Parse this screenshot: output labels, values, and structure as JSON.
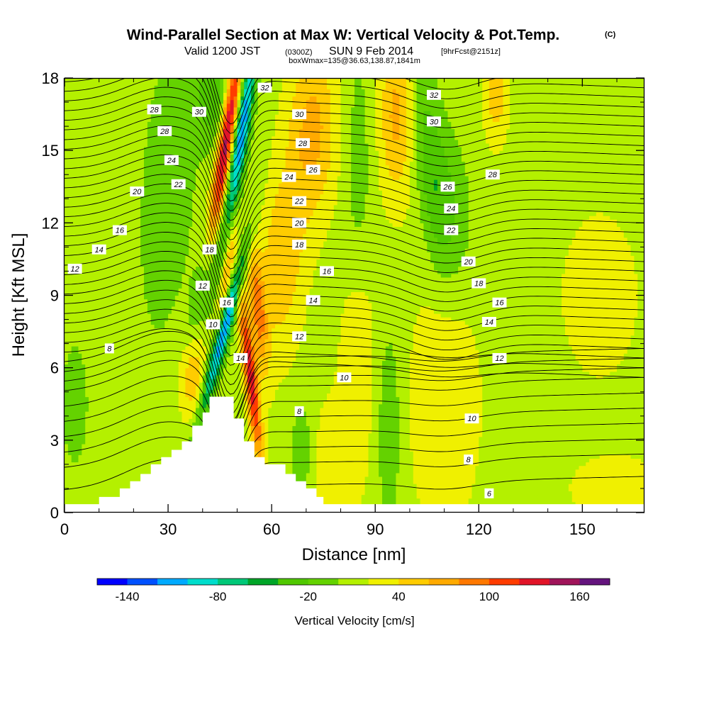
{
  "header": {
    "title": "Wind-Parallel Section at Max W: Vertical Velocity & Pot.Temp.",
    "title_mark": "(C)",
    "valid_a": "Valid 1200 JST",
    "valid_b": "(0300Z)",
    "valid_c": "SUN 9 Feb 2014",
    "valid_d": "[9hrFcst@2151z]",
    "box": "boxWmax=135@36.63,138.87,1841m"
  },
  "chart_data": {
    "type": "heatmap",
    "xlabel": "Distance [nm]",
    "ylabel": "Height [Kft MSL]",
    "xlim": [
      0,
      168
    ],
    "ylim": [
      0,
      18
    ],
    "xticks": [
      0,
      30,
      60,
      90,
      120,
      150
    ],
    "yticks": [
      0,
      3,
      6,
      9,
      12,
      15,
      18
    ],
    "colorbar": {
      "label": "Vertical Velocity [cm/s]",
      "tick_values": [
        -140,
        -80,
        -20,
        40,
        100,
        160
      ],
      "levels": [
        -160,
        -140,
        -120,
        -100,
        -80,
        -60,
        -40,
        -20,
        0,
        20,
        40,
        60,
        80,
        100,
        120,
        140,
        160,
        180
      ],
      "colors": [
        "#0000ff",
        "#0050ff",
        "#00aaff",
        "#00ddcc",
        "#00c878",
        "#00a528",
        "#50c800",
        "#64d200",
        "#b4f000",
        "#f0f000",
        "#ffcc00",
        "#ffaa00",
        "#ff7800",
        "#ff3c00",
        "#e11428",
        "#a0145a",
        "#64147d"
      ]
    },
    "w_background": 10,
    "w_features": [
      {
        "x": 47,
        "y": 15.5,
        "sx": 1.6,
        "sy": 3.0,
        "tilt": 0.25,
        "value": 150
      },
      {
        "x": 47,
        "y": 10.0,
        "sx": 1.3,
        "sy": 2.0,
        "tilt": 0.22,
        "value": 70
      },
      {
        "x": 51,
        "y": 15.5,
        "sx": 1.6,
        "sy": 3.0,
        "tilt": 0.25,
        "value": -130
      },
      {
        "x": 46,
        "y": 7.5,
        "sx": 1.5,
        "sy": 2.5,
        "tilt": 0.45,
        "value": -140
      },
      {
        "x": 41,
        "y": 9.5,
        "sx": 2.5,
        "sy": 2.0,
        "tilt": 0.45,
        "value": -40
      },
      {
        "x": 54,
        "y": 5.5,
        "sx": 1.3,
        "sy": 2.5,
        "tilt": -0.2,
        "value": 120
      },
      {
        "x": 56,
        "y": 8.5,
        "sx": 1.6,
        "sy": 1.8,
        "tilt": -0.15,
        "value": 70
      },
      {
        "x": 43,
        "y": 17.2,
        "sx": 4.0,
        "sy": 1.4,
        "tilt": 0.0,
        "value": -40
      },
      {
        "x": 30,
        "y": 13.5,
        "sx": 5.0,
        "sy": 4.0,
        "tilt": 0.1,
        "value": -30
      },
      {
        "x": 63,
        "y": 10.5,
        "sx": 5.0,
        "sy": 3.0,
        "tilt": 0.1,
        "value": 45
      },
      {
        "x": 72,
        "y": 16.0,
        "sx": 5.0,
        "sy": 2.5,
        "tilt": 0.0,
        "value": 55
      },
      {
        "x": 96,
        "y": 16.5,
        "sx": 3.5,
        "sy": 2.5,
        "tilt": 0.0,
        "value": 55
      },
      {
        "x": 106,
        "y": 14.5,
        "sx": 3.0,
        "sy": 3.0,
        "tilt": -0.15,
        "value": -40
      },
      {
        "x": 112,
        "y": 12.5,
        "sx": 4.0,
        "sy": 2.2,
        "tilt": -0.1,
        "value": -30
      },
      {
        "x": 85,
        "y": 14.0,
        "sx": 3.0,
        "sy": 4.0,
        "tilt": 0.0,
        "value": -20
      },
      {
        "x": 37,
        "y": 5.8,
        "sx": 3.0,
        "sy": 1.4,
        "tilt": 0.0,
        "value": 45
      },
      {
        "x": 3,
        "y": 4.5,
        "sx": 3.0,
        "sy": 2.0,
        "tilt": 0.0,
        "value": -20
      },
      {
        "x": 69,
        "y": 2.5,
        "sx": 2.5,
        "sy": 1.5,
        "tilt": 0.0,
        "value": -30
      },
      {
        "x": 94,
        "y": 3.5,
        "sx": 2.5,
        "sy": 3.0,
        "tilt": 0.0,
        "value": -30
      },
      {
        "x": 85,
        "y": 7.0,
        "sx": 4.0,
        "sy": 3.0,
        "tilt": 0.0,
        "value": 25
      },
      {
        "x": 78,
        "y": 2.0,
        "sx": 6.0,
        "sy": 2.0,
        "tilt": 0.0,
        "value": 25
      },
      {
        "x": 110,
        "y": 4.5,
        "sx": 8.0,
        "sy": 4.0,
        "tilt": 0.0,
        "value": 25
      },
      {
        "x": 155,
        "y": 9.0,
        "sx": 8.0,
        "sy": 2.5,
        "tilt": 0.0,
        "value": 25
      },
      {
        "x": 160,
        "y": 1.0,
        "sx": 10.0,
        "sy": 1.0,
        "tilt": 0.0,
        "value": 25
      },
      {
        "x": 125,
        "y": 17.5,
        "sx": 2.5,
        "sy": 1.5,
        "tilt": 0.0,
        "value": 45
      },
      {
        "x": 150,
        "y": 13.0,
        "sx": 12.0,
        "sy": 4.0,
        "tilt": 0.0,
        "value": 0
      }
    ],
    "terrain": [
      [
        0,
        0.35
      ],
      [
        10,
        0.35
      ],
      [
        10,
        0.65
      ],
      [
        16,
        0.65
      ],
      [
        16,
        1.0
      ],
      [
        19,
        1.0
      ],
      [
        19,
        1.3
      ],
      [
        22,
        1.3
      ],
      [
        22,
        1.6
      ],
      [
        25,
        1.6
      ],
      [
        25,
        2.0
      ],
      [
        28,
        2.0
      ],
      [
        28,
        2.3
      ],
      [
        31,
        2.3
      ],
      [
        31,
        2.6
      ],
      [
        34,
        2.6
      ],
      [
        34,
        2.95
      ],
      [
        37,
        2.95
      ],
      [
        37,
        3.6
      ],
      [
        40,
        3.6
      ],
      [
        40,
        4.15
      ],
      [
        42,
        4.15
      ],
      [
        42,
        4.8
      ],
      [
        49,
        4.8
      ],
      [
        49,
        3.9
      ],
      [
        52,
        3.9
      ],
      [
        52,
        2.95
      ],
      [
        55,
        2.95
      ],
      [
        55,
        2.3
      ],
      [
        58,
        2.3
      ],
      [
        58,
        2.0
      ],
      [
        64,
        2.0
      ],
      [
        64,
        1.6
      ],
      [
        67,
        1.6
      ],
      [
        67,
        1.3
      ],
      [
        70,
        1.3
      ],
      [
        70,
        1.0
      ],
      [
        73,
        1.0
      ],
      [
        73,
        0.65
      ],
      [
        75,
        0.65
      ],
      [
        75,
        0.35
      ],
      [
        168,
        0.35
      ]
    ],
    "isentropes": {
      "levels": [
        6,
        8,
        10,
        12,
        14,
        16,
        18,
        20,
        22,
        24,
        26,
        28,
        30,
        32
      ],
      "labels": [
        {
          "text": "32",
          "x": 58,
          "y": 17.6
        },
        {
          "text": "30",
          "x": 39,
          "y": 16.6
        },
        {
          "text": "28",
          "x": 26,
          "y": 16.7
        },
        {
          "text": "28",
          "x": 29,
          "y": 15.8
        },
        {
          "text": "24",
          "x": 31,
          "y": 14.6
        },
        {
          "text": "22",
          "x": 33,
          "y": 13.6
        },
        {
          "text": "20",
          "x": 21,
          "y": 13.3
        },
        {
          "text": "16",
          "x": 16,
          "y": 11.7
        },
        {
          "text": "14",
          "x": 10,
          "y": 10.9
        },
        {
          "text": "12",
          "x": 3,
          "y": 10.1
        },
        {
          "text": "8",
          "x": 13,
          "y": 6.8
        },
        {
          "text": "18",
          "x": 42,
          "y": 10.9
        },
        {
          "text": "12",
          "x": 40,
          "y": 9.4
        },
        {
          "text": "16",
          "x": 47,
          "y": 8.7
        },
        {
          "text": "10",
          "x": 43,
          "y": 7.8
        },
        {
          "text": "14",
          "x": 51,
          "y": 6.4
        },
        {
          "text": "30",
          "x": 68,
          "y": 16.5
        },
        {
          "text": "28",
          "x": 69,
          "y": 15.3
        },
        {
          "text": "26",
          "x": 72,
          "y": 14.2
        },
        {
          "text": "24",
          "x": 65,
          "y": 13.9
        },
        {
          "text": "22",
          "x": 68,
          "y": 12.9
        },
        {
          "text": "20",
          "x": 68,
          "y": 12.0
        },
        {
          "text": "18",
          "x": 68,
          "y": 11.1
        },
        {
          "text": "16",
          "x": 76,
          "y": 10.0
        },
        {
          "text": "14",
          "x": 72,
          "y": 8.8
        },
        {
          "text": "12",
          "x": 68,
          "y": 7.3
        },
        {
          "text": "10",
          "x": 81,
          "y": 5.6
        },
        {
          "text": "8",
          "x": 68,
          "y": 4.2
        },
        {
          "text": "32",
          "x": 107,
          "y": 17.3
        },
        {
          "text": "30",
          "x": 107,
          "y": 16.2
        },
        {
          "text": "28",
          "x": 124,
          "y": 14.0
        },
        {
          "text": "26",
          "x": 111,
          "y": 13.5
        },
        {
          "text": "24",
          "x": 112,
          "y": 12.6
        },
        {
          "text": "22",
          "x": 112,
          "y": 11.7
        },
        {
          "text": "20",
          "x": 117,
          "y": 10.4
        },
        {
          "text": "18",
          "x": 120,
          "y": 9.5
        },
        {
          "text": "16",
          "x": 126,
          "y": 8.7
        },
        {
          "text": "14",
          "x": 123,
          "y": 7.9
        },
        {
          "text": "12",
          "x": 126,
          "y": 6.4
        },
        {
          "text": "10",
          "x": 118,
          "y": 3.9
        },
        {
          "text": "8",
          "x": 117,
          "y": 2.2
        },
        {
          "text": "6",
          "x": 123,
          "y": 0.8
        }
      ]
    }
  }
}
